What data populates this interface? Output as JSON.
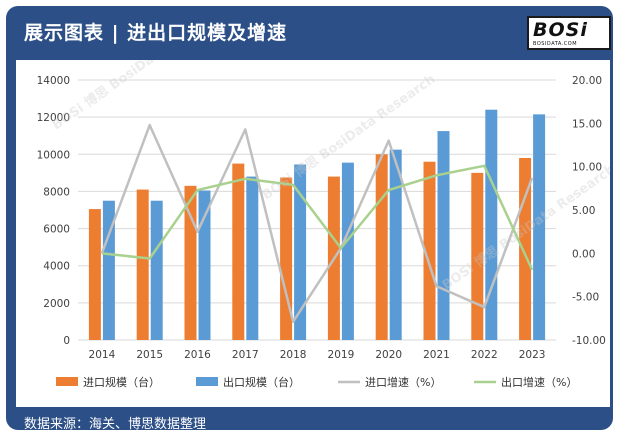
{
  "header": {
    "title": "展示图表 | 进出口规模及增速",
    "logo_text": "BOSi",
    "logo_sub": "BOSIDATA.COM"
  },
  "footer": {
    "source": "数据来源：海关、博思数据整理"
  },
  "watermark": {
    "text": "BOSi 博思 BosiData Research"
  },
  "colors": {
    "card_bg": "#2b4f86",
    "import_bar": "#ed7d31",
    "export_bar": "#5b9bd5",
    "import_line": "#c0c0c0",
    "export_line": "#a9d18e"
  },
  "chart_data": {
    "type": "bar",
    "title": "",
    "categories": [
      "2014",
      "2015",
      "2016",
      "2017",
      "2018",
      "2019",
      "2020",
      "2021",
      "2022",
      "2023"
    ],
    "series": [
      {
        "name": "进口规模（台）",
        "type": "bar",
        "axis": "left",
        "values": [
          7050,
          8100,
          8300,
          9500,
          8750,
          8800,
          10000,
          9600,
          9000,
          9800
        ]
      },
      {
        "name": "出口规模（台）",
        "type": "bar",
        "axis": "left",
        "values": [
          7500,
          7500,
          8050,
          8800,
          9450,
          9550,
          10250,
          11250,
          12400,
          12150
        ]
      },
      {
        "name": "进口增速（%）",
        "type": "line",
        "axis": "right",
        "values": [
          0.0,
          14.8,
          2.5,
          14.3,
          -7.9,
          0.6,
          13.0,
          -3.8,
          -6.2,
          8.7
        ]
      },
      {
        "name": "出口增速（%）",
        "type": "line",
        "axis": "right",
        "values": [
          0.0,
          -0.6,
          7.3,
          8.6,
          7.9,
          0.6,
          7.3,
          9.0,
          10.1,
          -1.9
        ]
      }
    ],
    "y_left": {
      "min": 0,
      "max": 14000,
      "ticks": [
        "0",
        "2000",
        "4000",
        "6000",
        "8000",
        "10000",
        "12000",
        "14000"
      ]
    },
    "y_right": {
      "min": -10,
      "max": 20,
      "ticks": [
        "-10.00",
        "-5.00",
        "0.00",
        "5.00",
        "10.00",
        "15.00",
        "20.00"
      ]
    },
    "grid": true,
    "legend_position": "bottom"
  }
}
